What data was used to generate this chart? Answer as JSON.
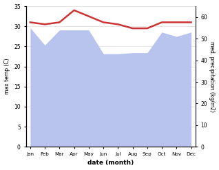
{
  "months": [
    "Jan",
    "Feb",
    "Mar",
    "Apr",
    "May",
    "Jun",
    "Jul",
    "Aug",
    "Sep",
    "Oct",
    "Nov",
    "Dec"
  ],
  "max_temp": [
    31.0,
    30.5,
    31.0,
    34.0,
    32.5,
    31.0,
    30.5,
    29.5,
    29.5,
    31.0,
    31.0,
    31.0
  ],
  "precipitation": [
    55.0,
    47.0,
    54.0,
    54.0,
    54.0,
    43.0,
    43.0,
    43.5,
    43.5,
    53.0,
    51.0,
    53.0
  ],
  "temp_ylim": [
    0,
    35
  ],
  "precip_ylim": [
    0,
    65
  ],
  "temp_yticks": [
    0,
    5,
    10,
    15,
    20,
    25,
    30,
    35
  ],
  "precip_yticks": [
    0,
    10,
    20,
    30,
    40,
    50,
    60
  ],
  "fill_color": "#b8c4ee",
  "line_color": "#cc3333",
  "line_width": 1.8,
  "xlabel": "date (month)",
  "ylabel_left": "max temp (C)",
  "ylabel_right": "med. precipitation (kg/m2)",
  "bg_color": "#ffffff"
}
